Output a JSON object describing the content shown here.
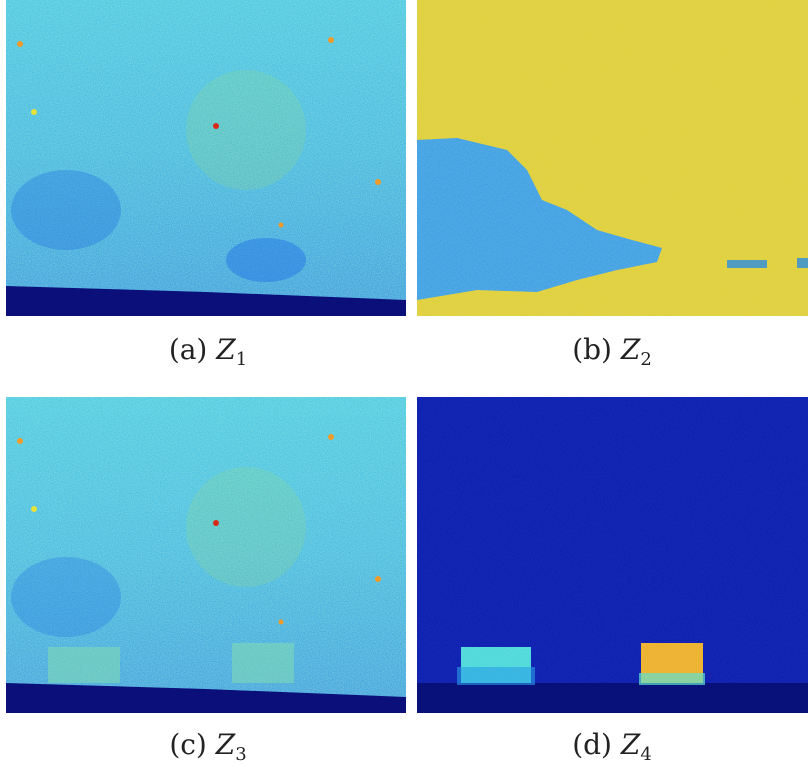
{
  "figures": [
    {
      "id": "a",
      "caption_prefix": "(a)",
      "var": "Z",
      "sub": "1"
    },
    {
      "id": "b",
      "caption_prefix": "(b)",
      "var": "Z",
      "sub": "2"
    },
    {
      "id": "c",
      "caption_prefix": "(c)",
      "var": "Z",
      "sub": "3"
    },
    {
      "id": "d",
      "caption_prefix": "(d)",
      "var": "Z",
      "sub": "4"
    }
  ],
  "colors": {
    "jet_dark": "#0a0f7a",
    "jet_blue": "#1e6ee6",
    "jet_cyan": "#35c8e8",
    "jet_green": "#8fe08a",
    "jet_yellow": "#e6e23a",
    "jet_orange": "#f09a2a",
    "jet_red": "#d82a1a"
  }
}
